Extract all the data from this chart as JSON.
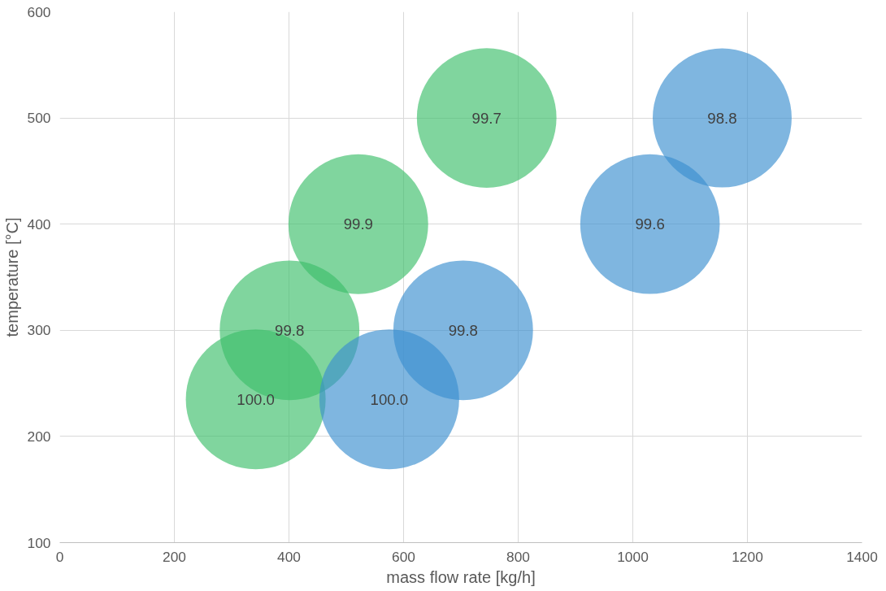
{
  "chart_data": {
    "type": "bubble",
    "xlabel": "mass flow rate [kg/h]",
    "ylabel": "temperature [°C]",
    "xlim": [
      0,
      1400
    ],
    "xticks": [
      0,
      200,
      400,
      600,
      800,
      1000,
      1200,
      1400
    ],
    "ylim": [
      100,
      600
    ],
    "yticks": [
      100,
      200,
      300,
      400,
      500,
      600
    ],
    "grid": true,
    "series": [
      {
        "color": "#3cbf6a",
        "x": [
          342,
          401,
          521,
          745
        ],
        "values": [
          235,
          300,
          400,
          500
        ],
        "sizes": [
          1.0,
          0.998,
          0.999,
          0.997
        ]
      },
      {
        "color": "#3a8fd0",
        "x": [
          575,
          704,
          1030,
          1156
        ],
        "values": [
          235,
          300,
          400,
          500
        ],
        "sizes": [
          1.0,
          0.998,
          0.996,
          0.988
        ]
      }
    ],
    "annotations": [
      {
        "text": "100.0",
        "x": 342,
        "y": 235
      },
      {
        "text": "99.8",
        "x": 401,
        "y": 300
      },
      {
        "text": "99.9",
        "x": 521,
        "y": 400
      },
      {
        "text": "99.7",
        "x": 745,
        "y": 500
      },
      {
        "text": "100.0",
        "x": 575,
        "y": 235
      },
      {
        "text": "99.8",
        "x": 704,
        "y": 300
      },
      {
        "text": "99.6",
        "x": 1030,
        "y": 400
      },
      {
        "text": "98.8",
        "x": 1156,
        "y": 500
      }
    ]
  }
}
